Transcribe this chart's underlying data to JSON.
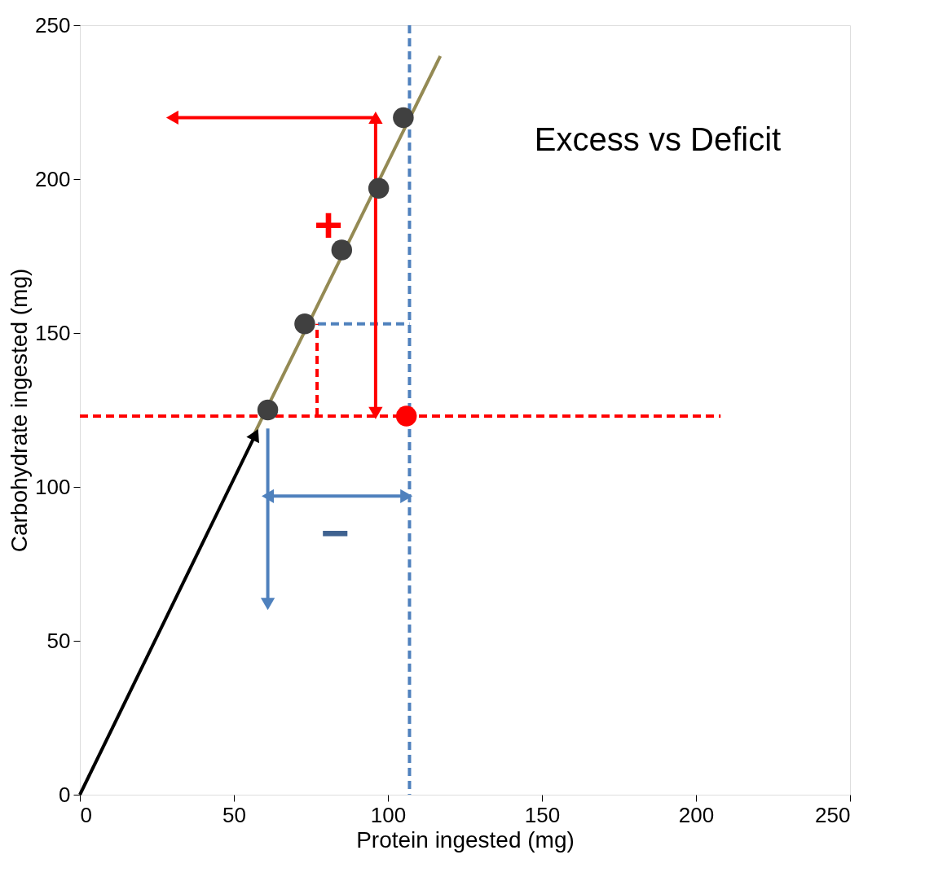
{
  "chart_data": {
    "type": "scatter",
    "xlabel": "Protein  ingested  (mg)",
    "ylabel": "Carbohydrate  ingested  (mg)",
    "xlim": [
      0,
      250
    ],
    "ylim": [
      0,
      250
    ],
    "xticks": [
      0,
      50,
      100,
      150,
      200,
      250
    ],
    "yticks": [
      0,
      50,
      100,
      150,
      200,
      250
    ],
    "grid": false,
    "series": [
      {
        "type": "line",
        "color": "#948a54",
        "x": [
          56,
          117
        ],
        "values": [
          116,
          240
        ]
      },
      {
        "type": "line",
        "color": "#ff0000",
        "line_style": "dashed",
        "x": [
          0,
          208
        ],
        "values": [
          123,
          123
        ]
      },
      {
        "type": "line",
        "color": "#4f81bd",
        "line_style": "dashed",
        "x": [
          73,
          107
        ],
        "values": [
          153,
          153
        ]
      },
      {
        "type": "line",
        "color": "#ff0000",
        "line_style": "dashed",
        "x": [
          77,
          77
        ],
        "values": [
          123,
          153
        ]
      },
      {
        "type": "line",
        "color": "#000000",
        "marker": "triangle",
        "x": [
          0,
          57
        ],
        "values": [
          0,
          117
        ]
      },
      {
        "type": "line",
        "color": "#ff0000",
        "marker": "triangle",
        "x": [
          96,
          96,
          96
        ],
        "values": [
          124,
          171,
          220
        ]
      },
      {
        "type": "line",
        "color": "#ff0000",
        "marker": "triangle",
        "x": [
          96,
          30
        ],
        "values": [
          220,
          220
        ]
      },
      {
        "type": "line",
        "color": "#4f81bd",
        "marker": "triangle",
        "x": [
          61,
          61
        ],
        "values": [
          119,
          62
        ]
      },
      {
        "type": "line",
        "color": "#4f81bd",
        "marker": "triangle",
        "x": [
          61,
          83.5,
          106
        ],
        "values": [
          97,
          97,
          97
        ]
      },
      {
        "color": "#404040",
        "marker": "circle",
        "x": [
          61,
          73,
          85,
          97,
          105
        ],
        "values": [
          125,
          153,
          177,
          197,
          220
        ]
      },
      {
        "color": "#ff0000",
        "marker": "circle",
        "x": [
          106
        ],
        "values": [
          123
        ]
      }
    ],
    "ref_lines": [
      {
        "axis": "x",
        "value": 107,
        "color": "#4f81bd",
        "line_style": "dashed"
      }
    ],
    "annotations": [
      "Excess vs Deficit",
      "+",
      "−"
    ]
  }
}
